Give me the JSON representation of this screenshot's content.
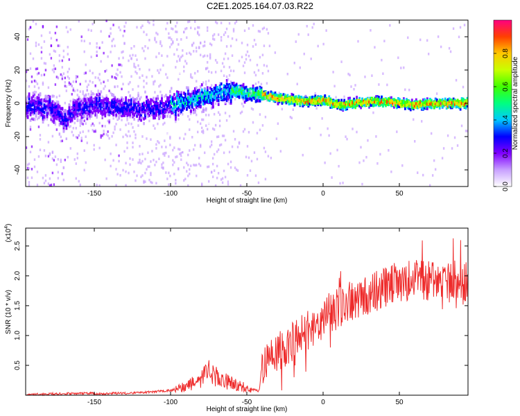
{
  "title": "C2E1.2025.164.07.03.R22",
  "colors": {
    "snr_line": "#ee2b2b",
    "colormap": [
      "#ffffff",
      "#c8a0ff",
      "#8000ff",
      "#0000ff",
      "#00c8ff",
      "#00ff80",
      "#40ff00",
      "#c8ff00",
      "#ffc800",
      "#ff4000",
      "#ff0080"
    ]
  },
  "chart_data": [
    {
      "type": "heatmap",
      "title": "",
      "xlabel": "Height of straight line (km)",
      "ylabel": "Frequency (Hz)",
      "xlim": [
        -195,
        95
      ],
      "ylim": [
        -50,
        50
      ],
      "x_ticks": [
        -150,
        -100,
        -50,
        0,
        50
      ],
      "y_ticks": [
        -40,
        -20,
        0,
        20,
        40
      ],
      "colorbar": {
        "label": "Normalized spectral amplitude",
        "range": [
          0,
          1
        ],
        "ticks": [
          "0.0",
          "0.2",
          "0.4",
          "0.6",
          "0.8"
        ]
      },
      "ridge": {
        "x": [
          -195,
          -180,
          -170,
          -160,
          -150,
          -140,
          -130,
          -120,
          -110,
          -100,
          -90,
          -80,
          -70,
          -60,
          -50,
          -45,
          -40,
          -30,
          -20,
          -10,
          0,
          10,
          20,
          30,
          40,
          50,
          60,
          70,
          80,
          95
        ],
        "freq": [
          -3,
          -2,
          -10,
          -3,
          -1,
          -3,
          -2,
          -4,
          -3,
          -1,
          1,
          3,
          5,
          8,
          6,
          6,
          5,
          3,
          2,
          1,
          2,
          -1,
          0,
          1,
          1,
          0,
          -1,
          0,
          0,
          0
        ]
      }
    },
    {
      "type": "line",
      "title": "",
      "xlabel": "Height of straight line (km)",
      "ylabel": "SNR (10 * v/v)",
      "y_multiplier": "(x10",
      "y_multiplier_exp": "4",
      "y_multiplier_close": ")",
      "xlim": [
        -195,
        95
      ],
      "ylim": [
        0,
        2.8
      ],
      "x_ticks": [
        -150,
        -100,
        -50,
        0,
        50
      ],
      "y_ticks": [
        0.5,
        1.0,
        1.5,
        2.0,
        2.5
      ],
      "series": [
        {
          "x": [
            -195,
            -180,
            -160,
            -140,
            -120,
            -100,
            -90,
            -80,
            -75,
            -70,
            -60,
            -50,
            -42,
            -40,
            -35,
            -30,
            -25,
            -20,
            -15,
            -10,
            -5,
            0,
            5,
            10,
            15,
            20,
            25,
            30,
            35,
            40,
            45,
            50,
            55,
            60,
            65,
            70,
            75,
            80,
            85,
            90,
            95
          ],
          "values": [
            0.01,
            0.02,
            0.03,
            0.03,
            0.04,
            0.08,
            0.15,
            0.25,
            0.4,
            0.3,
            0.2,
            0.12,
            0.07,
            0.5,
            0.7,
            0.7,
            0.8,
            0.9,
            1.05,
            1.1,
            1.15,
            1.3,
            1.4,
            1.45,
            1.55,
            1.55,
            1.6,
            1.7,
            1.75,
            1.8,
            1.85,
            1.9,
            1.9,
            1.95,
            1.95,
            1.9,
            1.85,
            1.9,
            1.95,
            1.85,
            1.9
          ]
        }
      ]
    }
  ]
}
